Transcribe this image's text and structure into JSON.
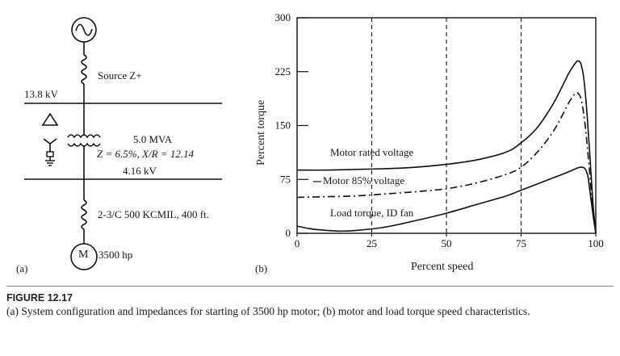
{
  "diagram": {
    "panel_label": "(a)",
    "source_label": "Source Z+",
    "bus_high_voltage": "13.8 kV",
    "transformer_rating": "5.0 MVA",
    "transformer_impedance": "Z = 6.5%, X/R = 12.14",
    "bus_low_voltage": "4.16 kV",
    "cable": "2-3/C 500 KCMIL, 400 ft.",
    "motor_symbol": "M",
    "motor_rating": "3500 hp",
    "icons": [
      "ac-source-icon",
      "inductor-icon",
      "delta-winding-icon",
      "wye-grounded-icon",
      "transformer-icon",
      "motor-icon"
    ]
  },
  "chart_data": {
    "type": "line",
    "panel_label": "(b)",
    "xlabel": "Percent speed",
    "ylabel": "Percent torque",
    "xlim": [
      0,
      100
    ],
    "ylim": [
      0,
      300
    ],
    "xticks": [
      0,
      25,
      50,
      75,
      100
    ],
    "yticks": [
      0,
      75,
      150,
      225,
      300
    ],
    "vertical_dashed_lines_at": [
      25,
      50,
      75
    ],
    "series": [
      {
        "name": "Motor rated voltage",
        "style": "solid",
        "x": [
          0,
          10,
          20,
          30,
          40,
          50,
          60,
          70,
          75,
          80,
          85,
          88,
          91,
          93,
          94,
          95,
          96,
          97,
          98,
          99,
          100
        ],
        "y": [
          88,
          88,
          89,
          90,
          92,
          96,
          102,
          113,
          126,
          145,
          175,
          198,
          223,
          236,
          240,
          236,
          215,
          170,
          110,
          45,
          0
        ]
      },
      {
        "name": "Motor 85% voltage",
        "style": "dashdot",
        "x": [
          0,
          10,
          20,
          30,
          40,
          50,
          60,
          70,
          75,
          80,
          85,
          88,
          91,
          93,
          94,
          95,
          96,
          97,
          98,
          99,
          100
        ],
        "y": [
          50,
          51,
          52,
          55,
          58,
          62,
          70,
          82,
          92,
          111,
          137,
          158,
          182,
          194,
          195,
          188,
          165,
          128,
          82,
          34,
          0
        ]
      },
      {
        "name": "Load torque, ID fan",
        "style": "solid",
        "x": [
          0,
          5,
          10,
          15,
          20,
          30,
          40,
          50,
          60,
          70,
          75,
          80,
          90,
          95,
          97,
          98,
          99,
          100
        ],
        "y": [
          10,
          6,
          4,
          3,
          4,
          9,
          18,
          28,
          40,
          52,
          60,
          68,
          84,
          92,
          85,
          60,
          28,
          0
        ]
      }
    ],
    "annotations": [
      "Motor rated voltage",
      "Motor 85% voltage",
      "Load torque, ID fan"
    ]
  },
  "caption": {
    "title": "FIGURE 12.17",
    "text": "(a) System configuration and impedances for starting of 3500 hp motor; (b) motor and load torque speed characteristics."
  }
}
